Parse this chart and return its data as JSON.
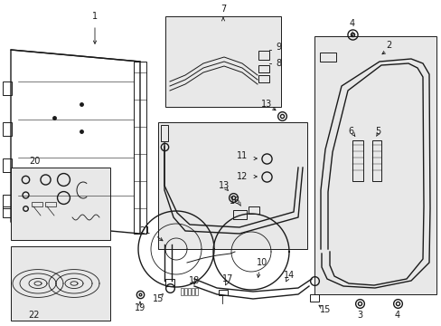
{
  "bg_color": "#ffffff",
  "line_color": "#1a1a1a",
  "box_bg": "#e8e8e8",
  "fig_width": 4.89,
  "fig_height": 3.6,
  "dpi": 100
}
